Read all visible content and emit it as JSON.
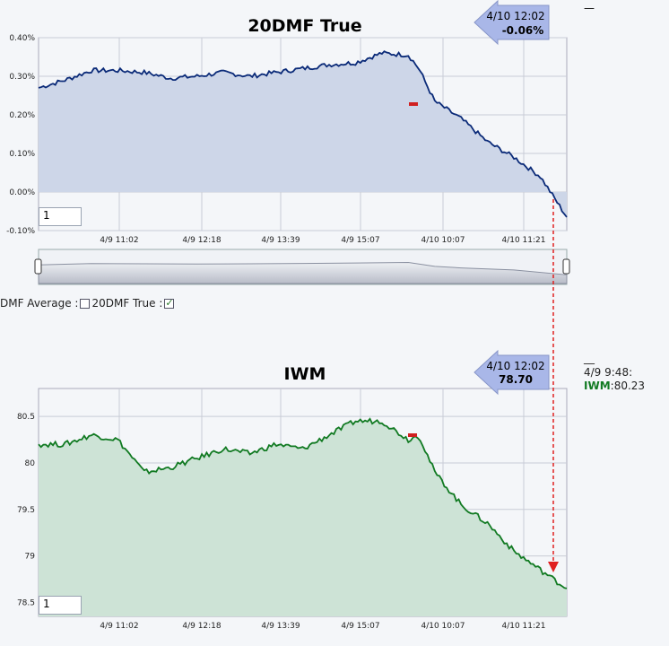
{
  "chart_data": [
    {
      "type": "area",
      "title": "20DMF True",
      "series_name": "20DMF True",
      "ylim": [
        -0.1,
        0.4
      ],
      "y_tick_labels": [
        "0.40%",
        "0.30%",
        "0.20%",
        "0.10%",
        "0.00%",
        "-0.10%"
      ],
      "x_tick_labels": [
        "4/9 11:02",
        "4/9 12:18",
        "4/9 13:39",
        "4/9 15:07",
        "4/10 10:07",
        "4/10 11:21"
      ],
      "x": [
        0,
        5,
        10,
        15,
        20,
        25,
        30,
        35,
        40,
        45,
        50,
        55,
        60,
        65,
        70,
        72,
        75,
        80,
        85,
        90,
        95,
        100
      ],
      "values": [
        0.27,
        0.29,
        0.315,
        0.315,
        0.31,
        0.295,
        0.3,
        0.31,
        0.3,
        0.31,
        0.32,
        0.33,
        0.335,
        0.36,
        0.355,
        0.32,
        0.235,
        0.19,
        0.13,
        0.09,
        0.04,
        -0.065
      ],
      "callout": {
        "time": "4/10 12:02",
        "value": "-0.06%"
      },
      "input_value": "1"
    },
    {
      "type": "area",
      "title": "IWM",
      "series_name": "IWM",
      "ylim": [
        78.35,
        80.8
      ],
      "y_tick_labels": [
        "80.5",
        "80",
        "79.5",
        "79",
        "78.5"
      ],
      "x_tick_labels": [
        "4/9 11:02",
        "4/9 12:18",
        "4/9 13:39",
        "4/9 15:07",
        "4/10 10:07",
        "4/10 11:21"
      ],
      "x": [
        0,
        5,
        10,
        15,
        20,
        25,
        30,
        35,
        40,
        45,
        50,
        55,
        60,
        65,
        70,
        72,
        75,
        80,
        85,
        90,
        95,
        100
      ],
      "values": [
        80.2,
        80.2,
        80.3,
        80.25,
        79.9,
        79.95,
        80.05,
        80.15,
        80.1,
        80.2,
        80.15,
        80.3,
        80.45,
        80.45,
        80.25,
        80.3,
        79.9,
        79.55,
        79.35,
        79.05,
        78.85,
        78.65
      ],
      "callout": {
        "time": "4/10 12:02",
        "value": "78.70"
      },
      "input_value": "1"
    }
  ],
  "navigator": {
    "x": [
      0,
      10,
      20,
      30,
      40,
      50,
      60,
      70,
      75,
      80,
      90,
      100
    ],
    "values": [
      0.27,
      0.315,
      0.31,
      0.3,
      0.31,
      0.32,
      0.335,
      0.355,
      0.22,
      0.17,
      0.1,
      -0.065
    ]
  },
  "legend": {
    "prefix": "DMF Average :",
    "series_label": "20DMF True :"
  },
  "side_panel": {
    "dash": "__",
    "time": "4/9 9:48:",
    "series": "IWM",
    "value": ":80.23"
  },
  "top_dash": "—",
  "colors": {
    "line1": "#0a2a78",
    "fill1": "#cdd6e8",
    "line2": "#117a22",
    "fill2": "#cde3d6",
    "callout": "#a9b7e8",
    "crosshair": "#e02020"
  }
}
